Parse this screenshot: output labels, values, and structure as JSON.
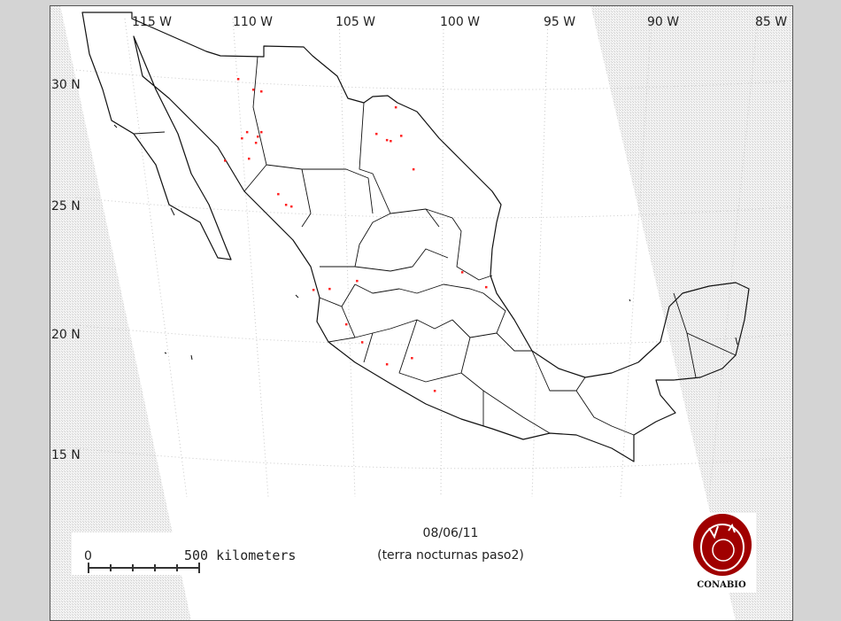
{
  "map": {
    "date": "08/06/11",
    "subtitle": "(terra nocturnas paso2)",
    "logo_text": "CONABIO",
    "scale_bar": {
      "start_label": "0",
      "end_label": "500 kilometers",
      "length_km": 500
    },
    "longitude_labels": [
      "115 W",
      "110 W",
      "105 W",
      "100 W",
      "95 W",
      "90 W",
      "85 W"
    ],
    "latitude_labels": [
      "30 N",
      "25 N",
      "20 N",
      "15 N"
    ],
    "colors": {
      "fire_points": "#ff2020",
      "borders": "#000000",
      "logo": "#a00000",
      "no_coverage": "#e6e6e6"
    },
    "fire_points_lonlat": [
      [
        -110.82,
        30.25
      ],
      [
        -110.09,
        29.82
      ],
      [
        -109.7,
        29.75
      ],
      [
        -110.39,
        28.11
      ],
      [
        -110.64,
        27.86
      ],
      [
        -109.7,
        28.11
      ],
      [
        -109.87,
        27.93
      ],
      [
        -109.96,
        27.68
      ],
      [
        -111.46,
        26.96
      ],
      [
        -110.3,
        27.04
      ],
      [
        -108.88,
        25.61
      ],
      [
        -108.5,
        25.18
      ],
      [
        -108.24,
        25.11
      ],
      [
        -103.18,
        29.11
      ],
      [
        -104.12,
        28.04
      ],
      [
        -103.61,
        27.79
      ],
      [
        -103.43,
        27.75
      ],
      [
        -102.92,
        27.96
      ],
      [
        -102.32,
        26.61
      ],
      [
        -99.96,
        22.46
      ],
      [
        -98.8,
        21.86
      ],
      [
        -106.39,
        21.79
      ],
      [
        -105.06,
        22.11
      ],
      [
        -105.58,
        20.36
      ],
      [
        -104.81,
        19.64
      ],
      [
        -102.4,
        19.0
      ],
      [
        -103.61,
        18.75
      ],
      [
        -101.29,
        17.68
      ],
      [
        -107.17,
        21.75
      ]
    ]
  }
}
